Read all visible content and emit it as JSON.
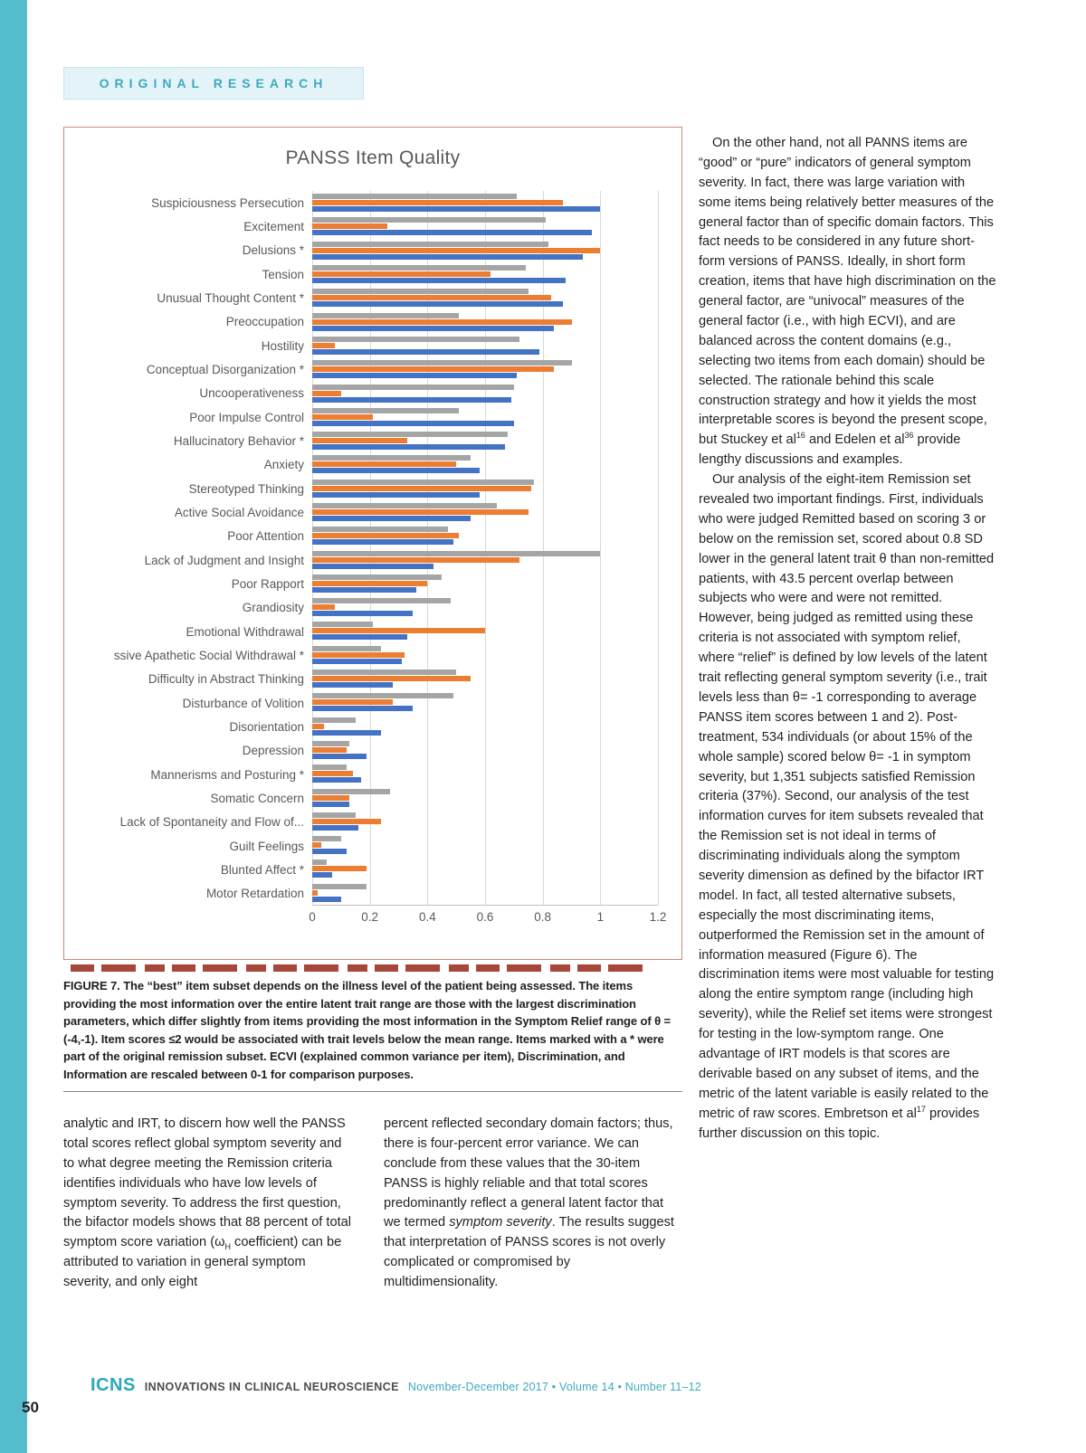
{
  "page": {
    "number": "50"
  },
  "kicker": "ORIGINAL RESEARCH",
  "figure": {
    "caption_label": "FIGURE 7.",
    "caption_text": "The “best” item subset depends on the illness level of the patient being assessed. The items providing the most information over the entire latent trait range are those with the largest discrimination parameters, which differ slightly from items providing the most information in the Symptom Relief range of θ =(-4,-1). Item scores ≤2 would be associated with trait levels below the mean range. Items marked with a * were part of the original remission subset. ECVI (explained common variance per item), Discrimination, and Information are rescaled between 0-1 for comparison purposes."
  },
  "chart_data": {
    "type": "bar",
    "orientation": "horizontal",
    "title": "PANSS Item Quality",
    "xlabel": "",
    "ylabel": "",
    "xlim": [
      0,
      1.2
    ],
    "x_ticks": [
      "0",
      "0.2",
      "0.4",
      "0.6",
      "0.8",
      "1",
      "1.2"
    ],
    "grid": true,
    "legend_visible": false,
    "categories": [
      "Suspiciousness Persecution",
      "Excitement",
      "Delusions *",
      "Tension",
      "Unusual Thought Content *",
      "Preoccupation",
      "Hostility",
      "Conceptual Disorganization *",
      "Uncooperativeness",
      "Poor Impulse Control",
      "Hallucinatory Behavior *",
      "Anxiety",
      "Stereotyped Thinking",
      "Active Social Avoidance",
      "Poor Attention",
      "Lack of Judgment and Insight",
      "Poor Rapport",
      "Grandiosity",
      "Emotional Withdrawal",
      "ssive Apathetic Social Withdrawal *",
      "Difficulty in Abstract Thinking",
      "Disturbance of Volition",
      "Disorientation",
      "Depression",
      "Mannerisms and Posturing *",
      "Somatic Concern",
      "Lack of Spontaneity and Flow of...",
      "Guilt Feelings",
      "Blunted Affect *",
      "Motor Retardation"
    ],
    "series": [
      {
        "name": "gray",
        "color": "#A5A5A5",
        "values": [
          0.71,
          0.81,
          0.82,
          0.74,
          0.75,
          0.51,
          0.72,
          0.9,
          0.7,
          0.51,
          0.68,
          0.55,
          0.77,
          0.64,
          0.47,
          1.0,
          0.45,
          0.48,
          0.21,
          0.24,
          0.5,
          0.49,
          0.15,
          0.13,
          0.12,
          0.27,
          0.15,
          0.1,
          0.05,
          0.19
        ]
      },
      {
        "name": "orange",
        "color": "#ED7D31",
        "values": [
          0.87,
          0.26,
          1.0,
          0.62,
          0.83,
          0.9,
          0.08,
          0.84,
          0.1,
          0.21,
          0.33,
          0.5,
          0.76,
          0.75,
          0.51,
          0.72,
          0.4,
          0.08,
          0.6,
          0.32,
          0.55,
          0.28,
          0.04,
          0.12,
          0.14,
          0.13,
          0.24,
          0.03,
          0.19,
          0.02
        ]
      },
      {
        "name": "blue",
        "color": "#4472C4",
        "values": [
          1.0,
          0.97,
          0.94,
          0.88,
          0.87,
          0.84,
          0.79,
          0.71,
          0.69,
          0.7,
          0.67,
          0.58,
          0.58,
          0.55,
          0.49,
          0.42,
          0.36,
          0.35,
          0.33,
          0.31,
          0.28,
          0.35,
          0.24,
          0.19,
          0.17,
          0.13,
          0.16,
          0.12,
          0.07,
          0.1
        ]
      }
    ]
  },
  "columns": {
    "left": [
      {
        "t": "analytic and IRT, to discern how well the PANSS total scores reflect global symptom severity and to what degree meeting the Remission criteria identifies individuals who have low levels of symptom severity. To address the first question, the bifactor models shows that 88 percent of total symptom score variation (ω"
      },
      {
        "t": "H",
        "style": "sub"
      },
      {
        "t": " coefficient) can be attributed to variation in general symptom severity, and only eight"
      }
    ],
    "middle": [
      {
        "t": "percent reflected secondary domain factors; thus, there is four-percent error variance. We can conclude from these values that the 30-item PANSS is highly reliable and that total scores predominantly reflect a general latent factor that we termed "
      },
      {
        "t": "symptom severity",
        "style": "i"
      },
      {
        "t": ". The results suggest that interpretation of PANSS scores is not overly complicated or compromised by multidimensionality."
      }
    ],
    "right_p1": [
      {
        "t": "On the other hand, not all PANNS items are “good” or “pure” indicators of general symptom severity. In fact, there was large variation with some items being relatively better measures of the general factor than of specific domain factors. This fact needs to be considered in any future short-form versions of PANSS. Ideally, in short form creation, items that have high discrimination on the general factor, are “univocal” measures of the general factor (i.e., with high ECVI), and are balanced across the content domains (e.g., selecting two items from each domain) should be selected. The rationale behind this scale construction strategy and how it yields the most interpretable scores is beyond the present scope, but Stuckey et al"
      },
      {
        "t": "16",
        "style": "sup"
      },
      {
        "t": " and Edelen et al"
      },
      {
        "t": "36",
        "style": "sup"
      },
      {
        "t": " provide lengthy discussions and examples."
      }
    ],
    "right_p2": [
      {
        "t": "Our analysis of the eight-item Remission set revealed two important findings. First, individuals who were judged Remitted based on scoring 3 or below on the remission set, scored about 0.8 SD lower in the general latent trait θ than non-remitted patients, with 43.5 percent overlap between subjects who were and were not remitted. However, being judged as remitted using these criteria is not associated with symptom relief, where “relief” is defined by low levels of the latent trait reflecting general symptom severity (i.e., trait levels less than θ= -1 corresponding to average PANSS item scores between 1 and 2). Post-treatment, 534 individuals (or about 15% of the whole sample) scored below θ= -1 in symptom severity, but 1,351 subjects satisfied Remission criteria (37%). Second, our analysis of the test information curves for item subsets revealed that the Remission set is not ideal in terms of discriminating individuals along the symptom severity dimension as defined by the bifactor IRT model. In fact, all tested alternative subsets, especially the most discriminating items, outperformed the Remission set in the amount of information measured (Figure 6). The discrimination items were most valuable for testing along the entire symptom range (including high severity), while the Relief set items were strongest for testing in the low-symptom range. One advantage of IRT models is that scores are derivable based on any subset of items, and the metric of the latent variable is easily related to the metric of raw scores. Embretson et al"
      },
      {
        "t": "17",
        "style": "sup"
      },
      {
        "t": " provides further discussion on this topic."
      }
    ]
  },
  "footer": {
    "logo": "ICNS",
    "name": "INNOVATIONS IN CLINICAL NEUROSCIENCE",
    "issue": "November-December 2017 • Volume 14 • Number 11–12"
  }
}
